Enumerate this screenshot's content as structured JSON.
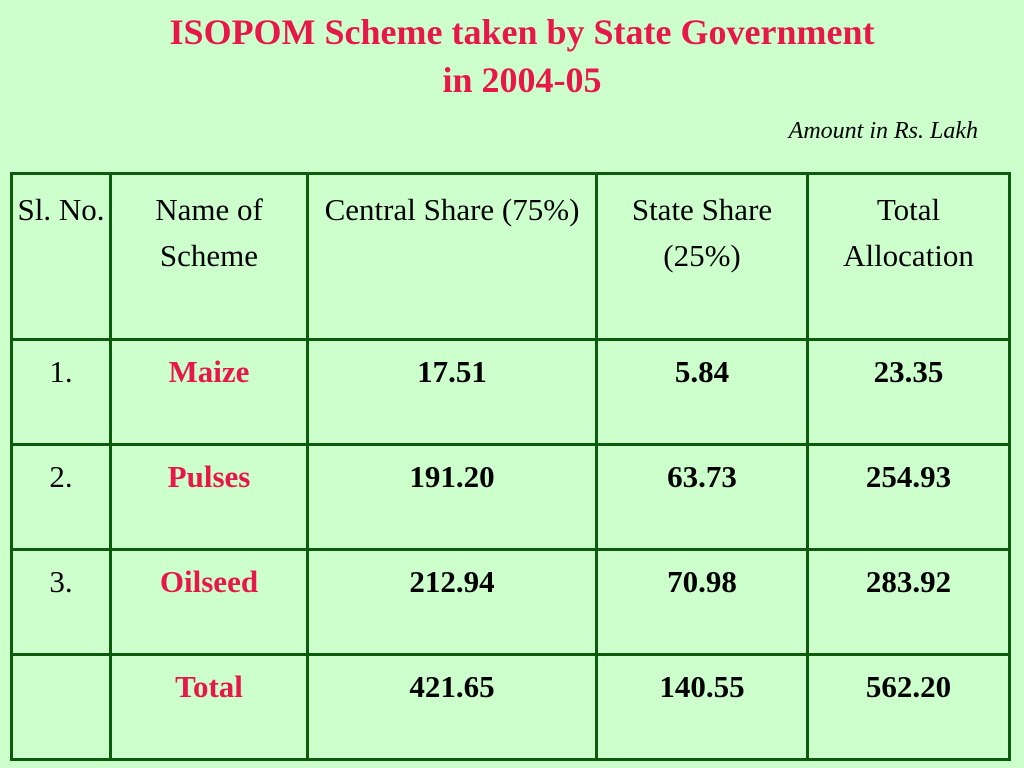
{
  "slide": {
    "title_line1": "ISOPOM Scheme taken by State Government",
    "title_line2": "in 2004-05",
    "unit_note": "Amount in Rs. Lakh"
  },
  "table": {
    "headers": {
      "sl_no": "Sl. No.",
      "scheme": "Name of Scheme",
      "central": "Central Share (75%)",
      "state": "State Share (25%)",
      "total": "Total Allocation"
    },
    "rows": [
      {
        "sl_no": "1.",
        "scheme": "Maize",
        "central": "17.51",
        "state": "5.84",
        "total": "23.35"
      },
      {
        "sl_no": "2.",
        "scheme": "Pulses",
        "central": "191.20",
        "state": "63.73",
        "total": "254.93"
      },
      {
        "sl_no": "3.",
        "scheme": "Oilseed",
        "central": "212.94",
        "state": "70.98",
        "total": "283.92"
      },
      {
        "sl_no": "",
        "scheme": "Total",
        "central": "421.65",
        "state": "140.55",
        "total": "562.20"
      }
    ]
  },
  "colors": {
    "background": "#ccffcc",
    "accent": "#e8174a",
    "border": "#0c5a0c"
  }
}
